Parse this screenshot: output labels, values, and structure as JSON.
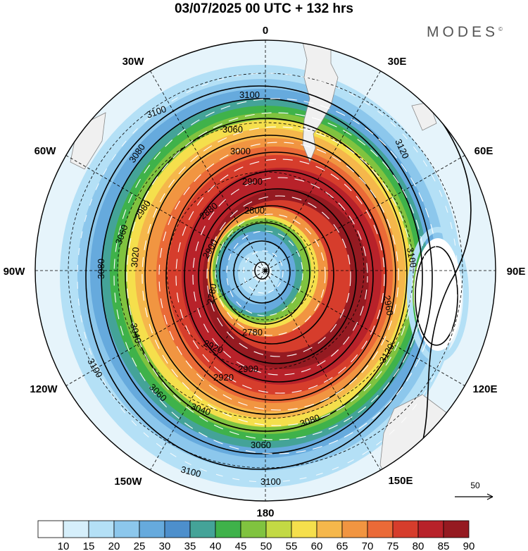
{
  "header": {
    "title": "03/07/2025  00 UTC  + 132 hrs",
    "brand": "MODES",
    "brand_mark": "©"
  },
  "map": {
    "projection": "polar stereographic (southern hemisphere)",
    "longitude_labels": [
      "0",
      "30E",
      "60E",
      "90E",
      "120E",
      "150E",
      "180",
      "150W",
      "120W",
      "90W",
      "60W",
      "30W"
    ],
    "contour_labels": [
      "3100",
      "3100",
      "3060",
      "3080",
      "3120",
      "3000",
      "2900",
      "2980",
      "2880",
      "3060",
      "2800",
      "3100",
      "2900",
      "3020",
      "3080",
      "2780",
      "2960",
      "3040",
      "2780",
      "2920",
      "3100",
      "2900",
      "2920",
      "3120",
      "3060",
      "3080",
      "3040",
      "3060",
      "3100",
      "3100"
    ],
    "wind_colors": [
      "#ffffff",
      "#d6effb",
      "#b4e0f6",
      "#8cc7ec",
      "#66aadd",
      "#4d8fcc",
      "#44a398",
      "#3fb24a",
      "#80c33f",
      "#c3d944",
      "#f5df4c",
      "#f5b74b",
      "#f19541",
      "#ea6a37",
      "#d63d2c",
      "#b8222a",
      "#951a21"
    ],
    "vector_reference": "50"
  },
  "colorbar": {
    "ticks": [
      "10",
      "15",
      "20",
      "25",
      "30",
      "35",
      "40",
      "45",
      "50",
      "55",
      "60",
      "65",
      "70",
      "75",
      "80",
      "85",
      "90"
    ],
    "colors": [
      "#ffffff",
      "#d6effb",
      "#b4e0f6",
      "#8cc7ec",
      "#66aadd",
      "#4d8fcc",
      "#44a398",
      "#3fb24a",
      "#80c33f",
      "#c3d944",
      "#f5df4c",
      "#f5b74b",
      "#f19541",
      "#ea6a37",
      "#d63d2c",
      "#b8222a",
      "#951a21"
    ]
  }
}
